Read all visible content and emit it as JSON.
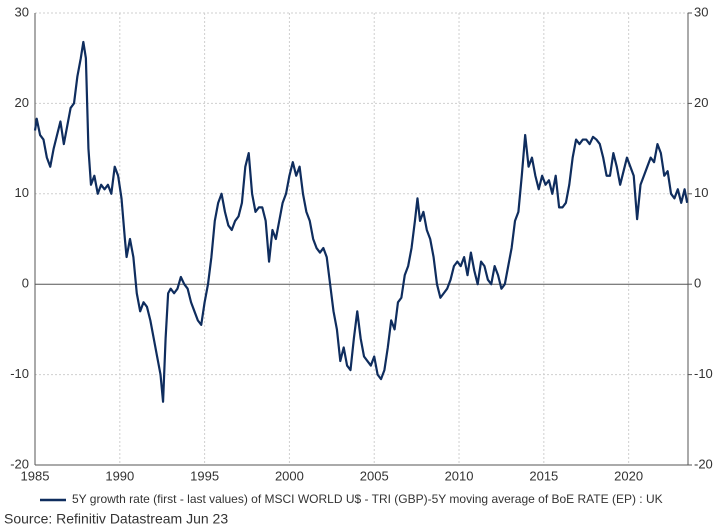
{
  "chart_data": {
    "type": "line",
    "source": "Source: Refinitiv Datastream Jun 23",
    "x": [
      1985.0,
      1985.1,
      1985.3,
      1985.5,
      1985.7,
      1985.9,
      1986.1,
      1986.3,
      1986.5,
      1986.7,
      1986.9,
      1987.1,
      1987.3,
      1987.5,
      1987.7,
      1987.85,
      1988.0,
      1988.15,
      1988.3,
      1988.5,
      1988.7,
      1988.9,
      1989.1,
      1989.3,
      1989.5,
      1989.7,
      1989.9,
      1990.1,
      1990.3,
      1990.4,
      1990.6,
      1990.8,
      1991.0,
      1991.2,
      1991.4,
      1991.6,
      1991.8,
      1992.0,
      1992.2,
      1992.4,
      1992.55,
      1992.7,
      1992.85,
      1993.0,
      1993.2,
      1993.4,
      1993.6,
      1993.8,
      1994.0,
      1994.2,
      1994.4,
      1994.6,
      1994.8,
      1995.0,
      1995.2,
      1995.4,
      1995.6,
      1995.8,
      1996.0,
      1996.2,
      1996.4,
      1996.6,
      1996.8,
      1997.0,
      1997.2,
      1997.4,
      1997.6,
      1997.8,
      1998.0,
      1998.2,
      1998.4,
      1998.6,
      1998.8,
      1999.0,
      1999.2,
      1999.4,
      1999.6,
      1999.8,
      2000.0,
      2000.2,
      2000.4,
      2000.6,
      2000.8,
      2001.0,
      2001.2,
      2001.4,
      2001.6,
      2001.8,
      2002.0,
      2002.2,
      2002.4,
      2002.6,
      2002.8,
      2003.0,
      2003.2,
      2003.4,
      2003.6,
      2003.8,
      2004.0,
      2004.2,
      2004.4,
      2004.6,
      2004.8,
      2005.0,
      2005.2,
      2005.4,
      2005.6,
      2005.8,
      2006.0,
      2006.2,
      2006.4,
      2006.6,
      2006.8,
      2007.0,
      2007.2,
      2007.4,
      2007.55,
      2007.7,
      2007.9,
      2008.1,
      2008.3,
      2008.5,
      2008.7,
      2008.9,
      2009.1,
      2009.3,
      2009.5,
      2009.7,
      2009.9,
      2010.1,
      2010.3,
      2010.5,
      2010.7,
      2010.9,
      2011.1,
      2011.3,
      2011.5,
      2011.7,
      2011.9,
      2012.1,
      2012.3,
      2012.5,
      2012.7,
      2012.9,
      2013.1,
      2013.3,
      2013.5,
      2013.7,
      2013.9,
      2014.1,
      2014.3,
      2014.5,
      2014.7,
      2014.9,
      2015.1,
      2015.3,
      2015.5,
      2015.7,
      2015.9,
      2016.1,
      2016.3,
      2016.5,
      2016.7,
      2016.9,
      2017.1,
      2017.3,
      2017.5,
      2017.7,
      2017.9,
      2018.1,
      2018.3,
      2018.5,
      2018.7,
      2018.9,
      2019.1,
      2019.3,
      2019.5,
      2019.7,
      2019.9,
      2020.1,
      2020.3,
      2020.5,
      2020.7,
      2020.9,
      2021.1,
      2021.3,
      2021.5,
      2021.7,
      2021.9,
      2022.1,
      2022.3,
      2022.5,
      2022.7,
      2022.9,
      2023.1,
      2023.3,
      2023.45
    ],
    "series": [
      {
        "name": "5Y growth rate (first - last values) of MSCI WORLD U$ - TRI (GBP)-5Y moving average of BoE RATE (EP) : UK",
        "color": "#0f2d5e",
        "values": [
          17,
          18.3,
          16.5,
          16,
          14,
          13,
          15,
          16.5,
          18,
          15.5,
          17.5,
          19.5,
          20,
          23,
          25,
          26.8,
          25,
          15,
          11,
          12,
          10,
          11,
          10.5,
          11,
          10,
          13,
          12,
          9.5,
          5,
          3,
          5,
          3,
          -1,
          -3,
          -2,
          -2.5,
          -4,
          -6,
          -8,
          -10,
          -13,
          -6,
          -1,
          -0.5,
          -1,
          -0.5,
          0.8,
          0,
          -0.5,
          -2,
          -3,
          -4,
          -4.5,
          -2,
          0,
          3,
          7,
          9,
          10,
          8,
          6.5,
          6,
          7,
          7.5,
          9,
          13,
          14.5,
          10,
          8,
          8.5,
          8.5,
          7,
          2.5,
          6,
          5,
          7,
          9,
          10,
          12,
          13.5,
          12,
          13,
          10,
          8,
          7,
          5,
          4,
          3.5,
          4,
          3,
          0,
          -3,
          -5,
          -8.5,
          -7,
          -9,
          -9.5,
          -6,
          -3,
          -6,
          -8,
          -8.5,
          -9,
          -8,
          -10,
          -10.5,
          -9.5,
          -7,
          -4,
          -5,
          -2,
          -1.5,
          1,
          2,
          4,
          7,
          9.5,
          7,
          8,
          6,
          5,
          3,
          0,
          -1.5,
          -1,
          -0.5,
          0.5,
          2,
          2.5,
          2,
          3,
          1,
          3.5,
          1.5,
          0,
          2.5,
          2,
          0.5,
          0,
          2,
          1,
          -0.5,
          0,
          2,
          4,
          7,
          8,
          12,
          16.5,
          13,
          14,
          12,
          10.5,
          12,
          11,
          11.5,
          10,
          12,
          8.5,
          8.5,
          9,
          11,
          14,
          16,
          15.5,
          16,
          16,
          15.5,
          16.3,
          16,
          15.5,
          14,
          12,
          12,
          14.5,
          13,
          11,
          12.5,
          14,
          13,
          12,
          7.2,
          11,
          12,
          13,
          14,
          13.5,
          15.5,
          14.5,
          12,
          12.5,
          10,
          9.5,
          10.5,
          9,
          10.5,
          9
        ]
      }
    ],
    "xlim": [
      1985,
      2023.5
    ],
    "xticks": [
      1985,
      1990,
      1995,
      2000,
      2005,
      2010,
      2015,
      2020
    ],
    "ylim": [
      -20,
      30
    ],
    "yticks": [
      -20,
      -10,
      0,
      10,
      20,
      30
    ],
    "y2lim": [
      -20,
      30
    ],
    "y2ticks": [
      -20,
      -10,
      0,
      10,
      20,
      30
    ],
    "grid": true
  }
}
